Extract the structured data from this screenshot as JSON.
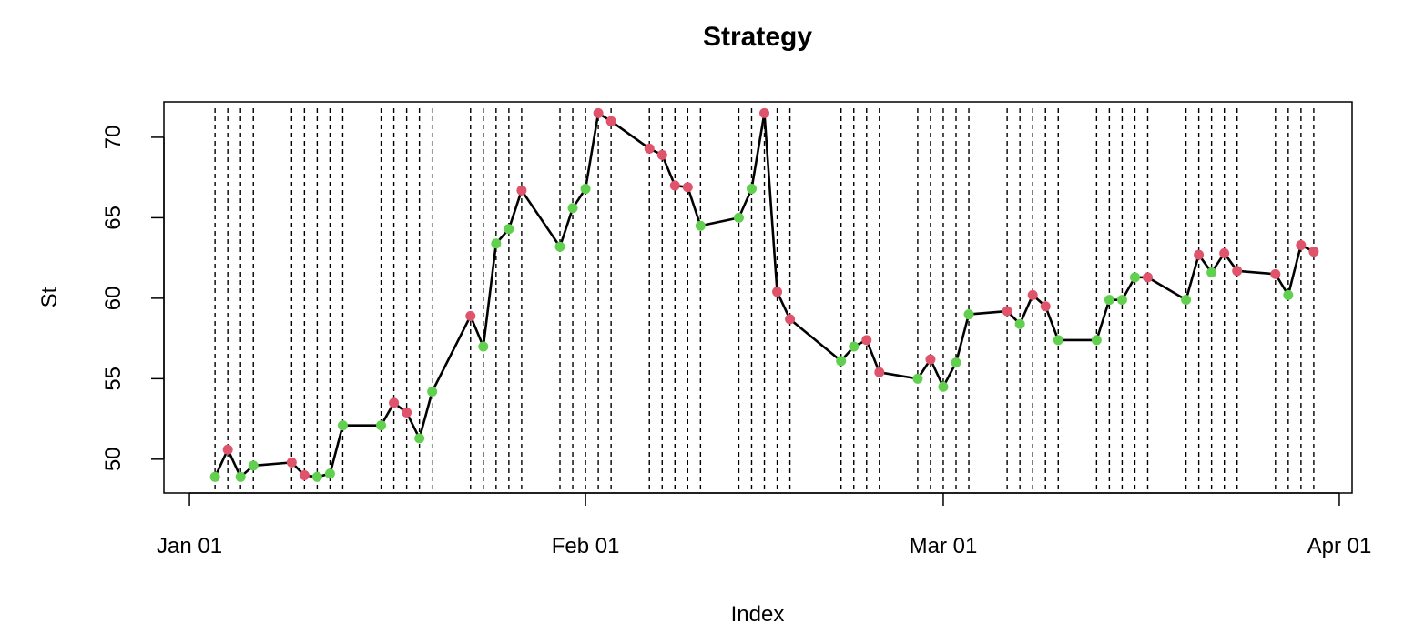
{
  "chart_data": {
    "type": "line",
    "title": "Strategy",
    "xlabel": "Index",
    "ylabel": "St",
    "x_ticks": [
      {
        "date": "2023-01-01",
        "label": "Jan 01"
      },
      {
        "date": "2023-02-01",
        "label": "Feb 01"
      },
      {
        "date": "2023-03-01",
        "label": "Mar 01"
      },
      {
        "date": "2023-04-01",
        "label": "Apr 01"
      }
    ],
    "y_ticks": [
      50,
      55,
      60,
      65,
      70
    ],
    "ylim": [
      47.9,
      72.2
    ],
    "xlim": [
      "2022-12-30",
      "2023-04-02"
    ],
    "grid": false,
    "colors": {
      "line": "#000000",
      "up": "#61D04F",
      "down": "#DF536B",
      "vline": "#000000"
    },
    "series": [
      {
        "points": [
          {
            "x": "2023-01-03",
            "y": 48.9,
            "signal": "up"
          },
          {
            "x": "2023-01-04",
            "y": 50.6,
            "signal": "down"
          },
          {
            "x": "2023-01-05",
            "y": 48.9,
            "signal": "up"
          },
          {
            "x": "2023-01-06",
            "y": 49.6,
            "signal": "up"
          },
          {
            "x": "2023-01-09",
            "y": 49.8,
            "signal": "down"
          },
          {
            "x": "2023-01-10",
            "y": 49.0,
            "signal": "down"
          },
          {
            "x": "2023-01-11",
            "y": 48.9,
            "signal": "up"
          },
          {
            "x": "2023-01-12",
            "y": 49.1,
            "signal": "up"
          },
          {
            "x": "2023-01-13",
            "y": 52.1,
            "signal": "up"
          },
          {
            "x": "2023-01-16",
            "y": 52.1,
            "signal": "up"
          },
          {
            "x": "2023-01-17",
            "y": 53.5,
            "signal": "down"
          },
          {
            "x": "2023-01-18",
            "y": 52.9,
            "signal": "down"
          },
          {
            "x": "2023-01-19",
            "y": 51.3,
            "signal": "up"
          },
          {
            "x": "2023-01-20",
            "y": 54.2,
            "signal": "up"
          },
          {
            "x": "2023-01-23",
            "y": 58.9,
            "signal": "down"
          },
          {
            "x": "2023-01-24",
            "y": 57.0,
            "signal": "up"
          },
          {
            "x": "2023-01-25",
            "y": 63.4,
            "signal": "up"
          },
          {
            "x": "2023-01-26",
            "y": 64.3,
            "signal": "up"
          },
          {
            "x": "2023-01-27",
            "y": 66.7,
            "signal": "down"
          },
          {
            "x": "2023-01-30",
            "y": 63.2,
            "signal": "up"
          },
          {
            "x": "2023-01-31",
            "y": 65.6,
            "signal": "up"
          },
          {
            "x": "2023-02-01",
            "y": 66.8,
            "signal": "up"
          },
          {
            "x": "2023-02-02",
            "y": 71.5,
            "signal": "down"
          },
          {
            "x": "2023-02-03",
            "y": 71.0,
            "signal": "down"
          },
          {
            "x": "2023-02-06",
            "y": 69.3,
            "signal": "down"
          },
          {
            "x": "2023-02-07",
            "y": 68.9,
            "signal": "down"
          },
          {
            "x": "2023-02-08",
            "y": 67.0,
            "signal": "down"
          },
          {
            "x": "2023-02-09",
            "y": 66.9,
            "signal": "down"
          },
          {
            "x": "2023-02-10",
            "y": 64.5,
            "signal": "up"
          },
          {
            "x": "2023-02-13",
            "y": 65.0,
            "signal": "up"
          },
          {
            "x": "2023-02-14",
            "y": 66.8,
            "signal": "up"
          },
          {
            "x": "2023-02-15",
            "y": 71.5,
            "signal": "down"
          },
          {
            "x": "2023-02-16",
            "y": 60.4,
            "signal": "down"
          },
          {
            "x": "2023-02-17",
            "y": 58.7,
            "signal": "down"
          },
          {
            "x": "2023-02-21",
            "y": 56.1,
            "signal": "up"
          },
          {
            "x": "2023-02-22",
            "y": 57.0,
            "signal": "up"
          },
          {
            "x": "2023-02-23",
            "y": 57.4,
            "signal": "down"
          },
          {
            "x": "2023-02-24",
            "y": 55.4,
            "signal": "down"
          },
          {
            "x": "2023-02-27",
            "y": 55.0,
            "signal": "up"
          },
          {
            "x": "2023-02-28",
            "y": 56.2,
            "signal": "down"
          },
          {
            "x": "2023-03-01",
            "y": 54.5,
            "signal": "up"
          },
          {
            "x": "2023-03-02",
            "y": 56.0,
            "signal": "up"
          },
          {
            "x": "2023-03-03",
            "y": 59.0,
            "signal": "up"
          },
          {
            "x": "2023-03-06",
            "y": 59.2,
            "signal": "down"
          },
          {
            "x": "2023-03-07",
            "y": 58.4,
            "signal": "up"
          },
          {
            "x": "2023-03-08",
            "y": 60.2,
            "signal": "down"
          },
          {
            "x": "2023-03-09",
            "y": 59.5,
            "signal": "down"
          },
          {
            "x": "2023-03-10",
            "y": 57.4,
            "signal": "up"
          },
          {
            "x": "2023-03-13",
            "y": 57.4,
            "signal": "up"
          },
          {
            "x": "2023-03-14",
            "y": 59.9,
            "signal": "up"
          },
          {
            "x": "2023-03-15",
            "y": 59.9,
            "signal": "up"
          },
          {
            "x": "2023-03-16",
            "y": 61.3,
            "signal": "up"
          },
          {
            "x": "2023-03-17",
            "y": 61.3,
            "signal": "down"
          },
          {
            "x": "2023-03-20",
            "y": 59.9,
            "signal": "up"
          },
          {
            "x": "2023-03-21",
            "y": 62.7,
            "signal": "down"
          },
          {
            "x": "2023-03-22",
            "y": 61.6,
            "signal": "up"
          },
          {
            "x": "2023-03-23",
            "y": 62.8,
            "signal": "down"
          },
          {
            "x": "2023-03-24",
            "y": 61.7,
            "signal": "down"
          },
          {
            "x": "2023-03-27",
            "y": 61.5,
            "signal": "down"
          },
          {
            "x": "2023-03-28",
            "y": 60.2,
            "signal": "up"
          },
          {
            "x": "2023-03-29",
            "y": 63.3,
            "signal": "down"
          },
          {
            "x": "2023-03-30",
            "y": 62.9,
            "signal": "down"
          }
        ]
      }
    ]
  }
}
